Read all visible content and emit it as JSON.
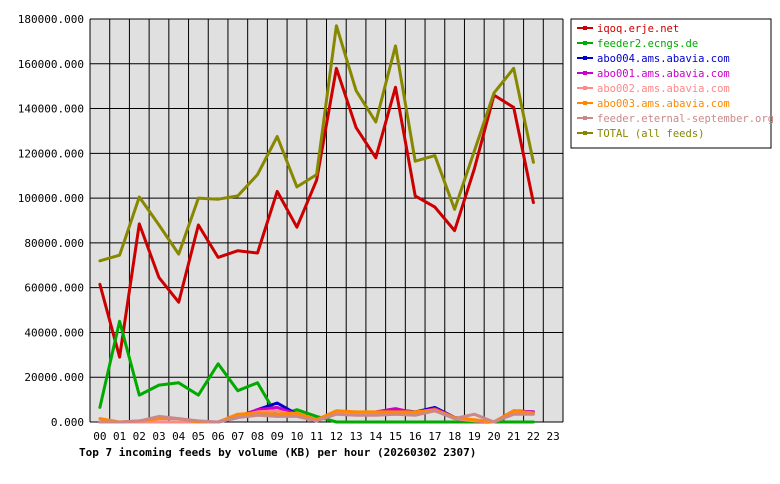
{
  "chart_data": {
    "type": "line",
    "title": "Top 7 incoming feeds by volume (KB) per hour (20260302 2307)",
    "x_categories": [
      "00",
      "01",
      "02",
      "03",
      "04",
      "05",
      "06",
      "07",
      "08",
      "09",
      "10",
      "11",
      "12",
      "13",
      "14",
      "15",
      "16",
      "17",
      "18",
      "19",
      "20",
      "21",
      "22",
      "23"
    ],
    "y_ticks": [
      "0.000",
      "20000.000",
      "40000.000",
      "60000.000",
      "80000.000",
      "100000.000",
      "120000.000",
      "140000.000",
      "160000.000",
      "180000.000"
    ],
    "ylim": [
      0,
      180000
    ],
    "grid": true,
    "legend_position": "top-right",
    "series": [
      {
        "name": "iqoq.erje.net",
        "color": "#cc0000",
        "values": [
          61500,
          29000,
          88500,
          64500,
          53500,
          88000,
          73500,
          76500,
          75500,
          103000,
          87000,
          108000,
          158000,
          131500,
          118000,
          149500,
          101000,
          96000,
          85500,
          113000,
          146000,
          140500,
          98000
        ]
      },
      {
        "name": "feeder2.ecngs.de",
        "color": "#00aa00",
        "values": [
          6500,
          45000,
          12000,
          16500,
          17500,
          12000,
          26000,
          14000,
          17500,
          2500,
          5500,
          2500,
          0,
          0,
          0,
          0,
          0,
          0,
          0,
          0,
          0,
          0,
          0
        ]
      },
      {
        "name": "abo004.ams.abavia.com",
        "color": "#0000cc",
        "values": [
          0,
          0,
          0,
          0,
          0,
          0,
          0,
          2000,
          5500,
          8500,
          3500,
          500,
          4500,
          4000,
          4000,
          5500,
          4500,
          6500,
          2000,
          500,
          0,
          4500,
          4500
        ]
      },
      {
        "name": "abo001.ams.abavia.com",
        "color": "#cc00cc",
        "values": [
          0,
          0,
          0,
          0,
          0,
          0,
          0,
          2500,
          5500,
          6500,
          3500,
          1000,
          4500,
          4000,
          4500,
          6000,
          4000,
          6000,
          2000,
          500,
          0,
          5000,
          4500
        ]
      },
      {
        "name": "abo002.ams.abavia.com",
        "color": "#ff8888",
        "values": [
          0,
          0,
          0,
          0,
          0,
          0,
          0,
          2500,
          4500,
          5000,
          3000,
          500,
          4000,
          3500,
          3500,
          4500,
          3500,
          5500,
          1500,
          500,
          0,
          4000,
          4000
        ]
      },
      {
        "name": "abo003.ams.abavia.com",
        "color": "#ff8800",
        "values": [
          1500,
          0,
          500,
          1500,
          1500,
          0,
          0,
          3500,
          4000,
          3500,
          4000,
          1000,
          5000,
          4500,
          4500,
          4500,
          4500,
          5500,
          2000,
          1000,
          0,
          5000,
          4000
        ]
      },
      {
        "name": "feeder.eternal-september.org",
        "color": "#cc8888",
        "values": [
          0,
          0,
          500,
          2500,
          1500,
          500,
          0,
          2000,
          3000,
          2500,
          2500,
          500,
          3500,
          3000,
          3000,
          3500,
          3000,
          5000,
          1500,
          3500,
          0,
          3500,
          3500
        ]
      },
      {
        "name": "TOTAL (all feeds)",
        "color": "#888800",
        "values": [
          72000,
          74500,
          100500,
          88000,
          75000,
          100000,
          99500,
          101000,
          110500,
          127500,
          105000,
          110500,
          177000,
          148000,
          134000,
          168000,
          116500,
          119000,
          95000,
          121000,
          147000,
          158000,
          116000
        ]
      }
    ]
  }
}
